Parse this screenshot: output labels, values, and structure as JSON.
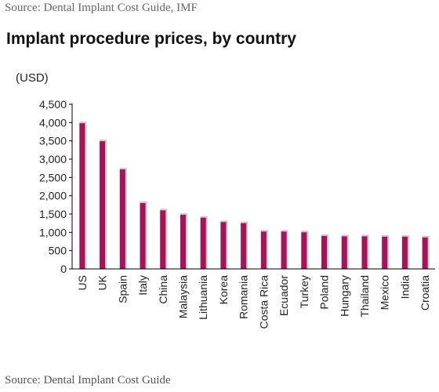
{
  "header": {
    "source_top": "Source: Dental Implant Cost Guide, IMF"
  },
  "footer": {
    "source_bottom": "Source: Dental Implant Cost Guide"
  },
  "colors": {
    "bar": "#a3155a",
    "bar_shadow": "#d9c2cc",
    "axis": "#000000"
  },
  "chart_data": {
    "type": "bar",
    "title": "Implant procedure prices, by country",
    "ylabel": "(USD)",
    "xlabel": "",
    "ylim": [
      0,
      4500
    ],
    "yticks": [
      0,
      500,
      1000,
      1500,
      2000,
      2500,
      3000,
      3500,
      4000,
      4500
    ],
    "ytick_labels": [
      "0",
      "500",
      "1,000",
      "1,500",
      "2,000",
      "2,500",
      "3,000",
      "3,500",
      "4,000",
      "4,500"
    ],
    "grid": false,
    "categories": [
      "US",
      "UK",
      "Spain",
      "Italy",
      "China",
      "Malaysia",
      "Lithuania",
      "Korea",
      "Romania",
      "Costa Rica",
      "Ecuador",
      "Turkey",
      "Poland",
      "Hungary",
      "Thailand",
      "Mexico",
      "India",
      "Croatia"
    ],
    "values": [
      3980,
      3490,
      2720,
      1800,
      1600,
      1480,
      1400,
      1280,
      1250,
      1020,
      1020,
      1000,
      900,
      890,
      890,
      880,
      880,
      860
    ]
  }
}
